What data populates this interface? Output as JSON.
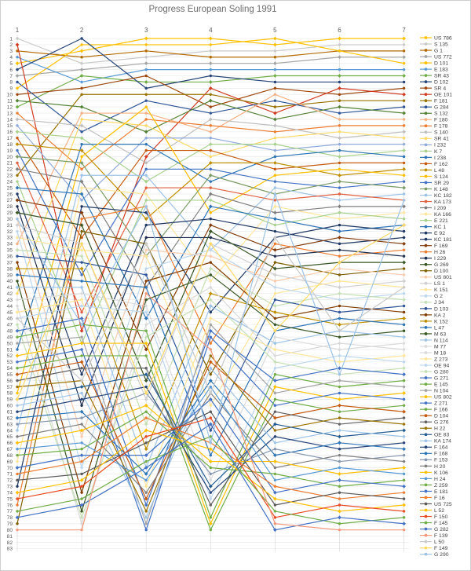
{
  "chart_data": {
    "type": "line",
    "subtype": "bump-chart",
    "title": "Progress European Soling 1991",
    "xlabel": "",
    "ylabel": "",
    "x_ticks": [
      "1",
      "2",
      "3",
      "4",
      "5",
      "6",
      "7"
    ],
    "y_axis": {
      "min": 1,
      "max": 83,
      "inverted": true
    },
    "grid": true,
    "legend_position": "right",
    "axis_text_color": "#595959",
    "gridline_color_h": "#ececec",
    "gridline_color_v": "#dcdcdc",
    "series": [
      {
        "name": "US 786",
        "color": "#FFC000",
        "values": [
          5,
          3,
          1,
          1,
          2,
          1,
          1
        ]
      },
      {
        "name": "S 135",
        "color": "#C9C9C9",
        "values": [
          1,
          5,
          4,
          3,
          3,
          2,
          2
        ]
      },
      {
        "name": "G 1",
        "color": "#B36A00",
        "values": [
          3,
          4,
          3,
          4,
          4,
          3,
          3
        ]
      },
      {
        "name": "US 772",
        "color": "#A5A5A5",
        "values": [
          7,
          6,
          5,
          5,
          5,
          4,
          4
        ]
      },
      {
        "name": "D 101",
        "color": "#FFC000",
        "values": [
          9,
          2,
          2,
          2,
          1,
          3,
          5
        ]
      },
      {
        "name": "E 183",
        "color": "#5B9BD5",
        "values": [
          4,
          8,
          6,
          6,
          6,
          6,
          6
        ]
      },
      {
        "name": "SR 43",
        "color": "#70AD47",
        "values": [
          12,
          7,
          8,
          8,
          7,
          7,
          7
        ]
      },
      {
        "name": "D 102",
        "color": "#264478",
        "values": [
          6,
          1,
          9,
          7,
          8,
          8,
          8
        ]
      },
      {
        "name": "SR 4",
        "color": "#9E480E",
        "values": [
          10,
          9,
          7,
          12,
          9,
          10,
          9
        ]
      },
      {
        "name": "OE 101",
        "color": "#D13C23",
        "values": [
          2,
          48,
          20,
          9,
          13,
          9,
          10
        ]
      },
      {
        "name": "F 181",
        "color": "#997300",
        "values": [
          23,
          10,
          10,
          10,
          12,
          11,
          11
        ]
      },
      {
        "name": "G 284",
        "color": "#2F5597",
        "values": [
          8,
          16,
          11,
          13,
          11,
          13,
          12
        ]
      },
      {
        "name": "S 132",
        "color": "#548235",
        "values": [
          11,
          12,
          16,
          11,
          14,
          12,
          13
        ]
      },
      {
        "name": "F 180",
        "color": "#F4B183",
        "values": [
          34,
          13,
          13,
          16,
          10,
          14,
          14
        ]
      },
      {
        "name": "F 178",
        "color": "#ED7D31",
        "values": [
          13,
          22,
          14,
          15,
          16,
          15,
          15
        ]
      },
      {
        "name": "S 140",
        "color": "#BFBFBF",
        "values": [
          14,
          15,
          21,
          14,
          15,
          17,
          16
        ]
      },
      {
        "name": "SR 41",
        "color": "#FFD966",
        "values": [
          42,
          14,
          15,
          20,
          17,
          16,
          17
        ]
      },
      {
        "name": "I 232",
        "color": "#8FAADC",
        "values": [
          15,
          27,
          17,
          17,
          19,
          18,
          18
        ]
      },
      {
        "name": "K 7",
        "color": "#A9D18E",
        "values": [
          16,
          17,
          24,
          18,
          18,
          20,
          19
        ]
      },
      {
        "name": "I 238",
        "color": "#2E75B6",
        "values": [
          51,
          18,
          18,
          24,
          20,
          19,
          20
        ]
      },
      {
        "name": "F 162",
        "color": "#C55A11",
        "values": [
          17,
          33,
          19,
          19,
          22,
          21,
          21
        ]
      },
      {
        "name": "L 48",
        "color": "#BF8F00",
        "values": [
          18,
          19,
          30,
          21,
          21,
          23,
          22
        ]
      },
      {
        "name": "S 124",
        "color": "#FFC000",
        "values": [
          58,
          20,
          12,
          29,
          23,
          22,
          23
        ]
      },
      {
        "name": "SR 29",
        "color": "#4472C4",
        "values": [
          19,
          39,
          22,
          22,
          24,
          25,
          24
        ]
      },
      {
        "name": "K 148",
        "color": "#7C9C65",
        "values": [
          20,
          21,
          36,
          23,
          26,
          24,
          25
        ]
      },
      {
        "name": "KC 182",
        "color": "#9DC3E6",
        "values": [
          64,
          23,
          23,
          35,
          25,
          27,
          26
        ]
      },
      {
        "name": "KA 173",
        "color": "#E06040",
        "values": [
          21,
          45,
          25,
          25,
          27,
          26,
          27
        ]
      },
      {
        "name": "I 209",
        "color": "#7F7F7F",
        "values": [
          22,
          24,
          41,
          26,
          29,
          28,
          28
        ]
      },
      {
        "name": "KA 166",
        "color": "#FFE699",
        "values": [
          69,
          25,
          26,
          40,
          28,
          30,
          29
        ]
      },
      {
        "name": "E 221",
        "color": "#A9D18E",
        "values": [
          24,
          50,
          27,
          27,
          31,
          29,
          30
        ]
      },
      {
        "name": "KC 1",
        "color": "#2E75B6",
        "values": [
          25,
          26,
          46,
          28,
          30,
          32,
          31
        ]
      },
      {
        "name": "E 92",
        "color": "#1F3864",
        "values": [
          73,
          28,
          29,
          45,
          33,
          31,
          32
        ]
      },
      {
        "name": "KC 181",
        "color": "#203864",
        "values": [
          26,
          55,
          31,
          30,
          32,
          34,
          33
        ]
      },
      {
        "name": "F 169",
        "color": "#843C0C",
        "values": [
          27,
          29,
          51,
          31,
          35,
          33,
          34
        ]
      },
      {
        "name": "H 26",
        "color": "#ED7D31",
        "values": [
          76,
          30,
          28,
          50,
          34,
          36,
          35
        ]
      },
      {
        "name": "I 229",
        "color": "#1F3050",
        "values": [
          28,
          60,
          33,
          33,
          36,
          35,
          36
        ]
      },
      {
        "name": "G 269",
        "color": "#375623",
        "values": [
          29,
          31,
          56,
          32,
          38,
          37,
          37
        ]
      },
      {
        "name": "D 100",
        "color": "#7F6000",
        "values": [
          79,
          32,
          34,
          55,
          37,
          39,
          38
        ]
      },
      {
        "name": "US 801",
        "color": "#F8CBAD",
        "values": [
          30,
          65,
          35,
          36,
          40,
          38,
          39
        ]
      },
      {
        "name": "LS 1",
        "color": "#D0CECE",
        "values": [
          31,
          34,
          59,
          34,
          39,
          41,
          40
        ]
      },
      {
        "name": "K 151",
        "color": "#FFE699",
        "values": [
          33,
          35,
          36,
          60,
          42,
          40,
          41
        ]
      },
      {
        "name": "G 2",
        "color": "#BDD7EE",
        "values": [
          32,
          70,
          38,
          35,
          41,
          43,
          42
        ]
      },
      {
        "name": "J 34",
        "color": "#C5E0B4",
        "values": [
          35,
          36,
          63,
          38,
          44,
          42,
          43
        ]
      },
      {
        "name": "D 103",
        "color": "#2F5597",
        "values": [
          36,
          37,
          39,
          64,
          43,
          45,
          44
        ]
      },
      {
        "name": "KA 2",
        "color": "#833C00",
        "values": [
          37,
          74,
          40,
          37,
          46,
          44,
          45
        ]
      },
      {
        "name": "K 152",
        "color": "#BF8F00",
        "values": [
          38,
          38,
          67,
          42,
          45,
          47,
          46
        ]
      },
      {
        "name": "L 47",
        "color": "#2E75B6",
        "values": [
          39,
          40,
          41,
          68,
          48,
          46,
          47
        ]
      },
      {
        "name": "M 63",
        "color": "#385723",
        "values": [
          40,
          77,
          43,
          39,
          47,
          49,
          48
        ]
      },
      {
        "name": "N 114",
        "color": "#9DC3E6",
        "values": [
          41,
          41,
          70,
          44,
          50,
          48,
          49
        ]
      },
      {
        "name": "M 77",
        "color": "#DBDBDB",
        "values": [
          43,
          42,
          44,
          72,
          49,
          51,
          50
        ]
      },
      {
        "name": "M 18",
        "color": "#D9D9D9",
        "values": [
          44,
          79,
          47,
          41,
          52,
          50,
          51
        ]
      },
      {
        "name": "Z 273",
        "color": "#FFE699",
        "values": [
          45,
          43,
          73,
          46,
          51,
          53,
          52
        ]
      },
      {
        "name": "OE 94",
        "color": "#BDD7EE",
        "values": [
          46,
          44,
          45,
          75,
          54,
          52,
          53
        ]
      },
      {
        "name": "G 280",
        "color": "#C5E0B4",
        "values": [
          47,
          78,
          49,
          43,
          53,
          55,
          54
        ]
      },
      {
        "name": "G 271",
        "color": "#4472C4",
        "values": [
          48,
          46,
          76,
          48,
          56,
          54,
          55
        ]
      },
      {
        "name": "E 145",
        "color": "#70AD47",
        "values": [
          49,
          47,
          48,
          78,
          55,
          57,
          56
        ]
      },
      {
        "name": "N 104",
        "color": "#A5A5A5",
        "values": [
          50,
          49,
          79,
          47,
          58,
          56,
          57
        ]
      },
      {
        "name": "US 802",
        "color": "#FFC000",
        "values": [
          52,
          50,
          50,
          79,
          57,
          59,
          58
        ]
      },
      {
        "name": "Z 271",
        "color": "#4472C4",
        "values": [
          53,
          51,
          80,
          49,
          60,
          58,
          59
        ]
      },
      {
        "name": "F 166",
        "color": "#70AD47",
        "values": [
          54,
          52,
          52,
          80,
          59,
          61,
          60
        ]
      },
      {
        "name": "D 104",
        "color": "#C55A11",
        "values": [
          55,
          53,
          75,
          53,
          62,
          60,
          61
        ]
      },
      {
        "name": "G 276",
        "color": "#636363",
        "values": [
          56,
          54,
          54,
          76,
          61,
          63,
          62
        ]
      },
      {
        "name": "H 22",
        "color": "#997300",
        "values": [
          57,
          56,
          77,
          52,
          64,
          62,
          63
        ]
      },
      {
        "name": "OE 83",
        "color": "#255E91",
        "values": [
          59,
          57,
          55,
          73,
          63,
          65,
          64
        ]
      },
      {
        "name": "KA 174",
        "color": "#9DC3E6",
        "values": [
          60,
          58,
          78,
          54,
          66,
          64,
          65
        ]
      },
      {
        "name": "F 164",
        "color": "#264478",
        "values": [
          61,
          59,
          57,
          74,
          65,
          67,
          66
        ]
      },
      {
        "name": "F 168",
        "color": "#2E75B6",
        "values": [
          62,
          61,
          71,
          56,
          68,
          66,
          67
        ]
      },
      {
        "name": "F 153",
        "color": "#8496B0",
        "values": [
          63,
          62,
          58,
          71,
          67,
          69,
          68
        ]
      },
      {
        "name": "H 20",
        "color": "#808080",
        "values": [
          65,
          63,
          74,
          58,
          70,
          68,
          69
        ]
      },
      {
        "name": "K 106",
        "color": "#FFC000",
        "values": [
          66,
          64,
          60,
          69,
          69,
          71,
          70
        ]
      },
      {
        "name": "H 24",
        "color": "#5B9BD5",
        "values": [
          67,
          66,
          72,
          57,
          72,
          70,
          71
        ]
      },
      {
        "name": "Z 259",
        "color": "#70AD47",
        "values": [
          68,
          67,
          61,
          70,
          71,
          73,
          72
        ]
      },
      {
        "name": "E 181",
        "color": "#4472C4",
        "values": [
          70,
          68,
          68,
          59,
          74,
          72,
          73
        ]
      },
      {
        "name": "F 16",
        "color": "#ED7D31",
        "values": [
          71,
          69,
          62,
          66,
          73,
          75,
          74
        ]
      },
      {
        "name": "US 725",
        "color": "#595959",
        "values": [
          72,
          71,
          66,
          61,
          76,
          74,
          75
        ]
      },
      {
        "name": "L 52",
        "color": "#FFC000",
        "values": [
          74,
          72,
          64,
          67,
          75,
          77,
          76
        ]
      },
      {
        "name": "F 150",
        "color": "#E84C22",
        "values": [
          75,
          73,
          65,
          62,
          78,
          76,
          77
        ]
      },
      {
        "name": "F 145",
        "color": "#70AD47",
        "values": [
          77,
          75,
          69,
          65,
          77,
          79,
          78
        ]
      },
      {
        "name": "G 282",
        "color": "#4472C4",
        "values": [
          78,
          76,
          70,
          63,
          80,
          78,
          79
        ]
      },
      {
        "name": "F 139",
        "color": "#F4987A",
        "values": [
          80,
          80,
          42,
          51,
          79,
          80,
          80
        ]
      },
      {
        "name": "L 50",
        "color": "#C9C9C9",
        "values": [
          46,
          56,
          34,
          58,
          33,
          48,
          41
        ]
      },
      {
        "name": "F 149",
        "color": "#FFD966",
        "values": [
          59,
          34,
          58,
          34,
          48,
          37,
          31
        ]
      },
      {
        "name": "G 290",
        "color": "#9DC3E6",
        "values": [
          30,
          47,
          28,
          66,
          26,
          55,
          27
        ]
      }
    ]
  }
}
